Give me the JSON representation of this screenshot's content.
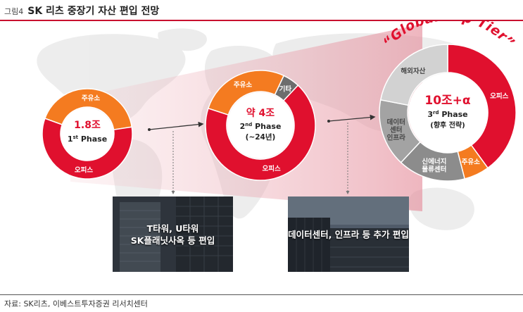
{
  "header": {
    "figure_label": "그림4",
    "title": "SK 리츠 중장기 자산 편입 전망"
  },
  "phases": [
    {
      "value": "1.8조",
      "phase_num": "1",
      "phase_sup": "st",
      "phase_word": "Phase",
      "segments": [
        {
          "label": "주유소",
          "color": "#f47b20",
          "share": 0.42
        },
        {
          "label": "오피스",
          "color": "#e0102e",
          "share": 0.58
        }
      ]
    },
    {
      "value": "약 4조",
      "phase_num": "2",
      "phase_sup": "nd",
      "phase_word": "Phase",
      "sub": "(~24년)",
      "segments": [
        {
          "label": "주유소",
          "color": "#f47b20",
          "share": 0.27
        },
        {
          "label": "기타",
          "color": "#6d6d6d",
          "share": 0.05
        },
        {
          "label": "오피스",
          "color": "#e0102e",
          "share": 0.68
        }
      ]
    },
    {
      "value": "10조+α",
      "phase_num": "3",
      "phase_sup": "rd",
      "phase_word": "Phase",
      "sub": "(향후 전략)",
      "segments": [
        {
          "label": "오피스",
          "color": "#e0102e",
          "share": 0.4
        },
        {
          "label": "주유소",
          "color": "#f47b20",
          "share": 0.06
        },
        {
          "label": "신에너지\n물류센터",
          "color": "#8c8c8c",
          "share": 0.16
        },
        {
          "label": "데이터\n센터\n인프라",
          "color": "#a3a3a3",
          "share": 0.16
        },
        {
          "label": "해외자산",
          "color": "#d2d2d2",
          "share": 0.22
        }
      ]
    }
  ],
  "global_banner": "“Global Top Tier”",
  "photos": [
    {
      "lines": [
        "T타워, U타워",
        "SK플래닛사옥 등 편입"
      ]
    },
    {
      "lines": [
        "데이터센터, 인프라 등 추가 편입"
      ]
    }
  ],
  "source": "자료: SK리츠, 이베스트투자증권 리서치센터",
  "colors": {
    "accent": "#c8102e",
    "office": "#e0102e",
    "gas_station": "#f47b20",
    "gray": "#8c8c8c"
  }
}
